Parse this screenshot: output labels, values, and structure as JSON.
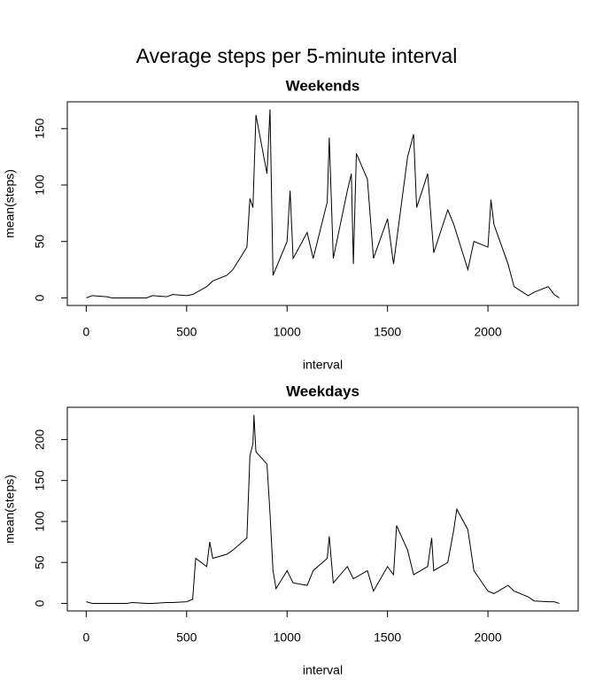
{
  "title": "Average steps per 5-minute interval",
  "chart_data": [
    {
      "type": "line",
      "title": "Weekends",
      "xlabel": "interval",
      "ylabel": "mean(steps)",
      "color": "#000000",
      "x": [
        0,
        30,
        100,
        130,
        200,
        230,
        300,
        330,
        400,
        430,
        500,
        530,
        600,
        630,
        700,
        730,
        800,
        815,
        830,
        845,
        900,
        915,
        930,
        1000,
        1015,
        1030,
        1100,
        1130,
        1200,
        1210,
        1230,
        1300,
        1320,
        1330,
        1345,
        1400,
        1430,
        1500,
        1530,
        1600,
        1630,
        1645,
        1700,
        1730,
        1800,
        1830,
        1900,
        1930,
        2000,
        2015,
        2030,
        2100,
        2130,
        2200,
        2230,
        2300,
        2330,
        2355
      ],
      "values": [
        0,
        2,
        1,
        0,
        0,
        0,
        0,
        2,
        1,
        3,
        2,
        3,
        10,
        15,
        20,
        25,
        45,
        88,
        80,
        162,
        110,
        167,
        20,
        50,
        95,
        35,
        58,
        35,
        85,
        142,
        35,
        95,
        110,
        30,
        128,
        105,
        35,
        70,
        30,
        125,
        145,
        80,
        110,
        40,
        78,
        65,
        25,
        50,
        45,
        87,
        65,
        30,
        10,
        2,
        5,
        10,
        3,
        0
      ],
      "xlim": [
        -94.2,
        2449.2
      ],
      "ylim": [
        -6.7,
        173.7
      ],
      "xticks": [
        0,
        500,
        1000,
        1500,
        2000
      ],
      "yticks": [
        0,
        50,
        100,
        150
      ]
    },
    {
      "type": "line",
      "title": "Weekdays",
      "xlabel": "interval",
      "ylabel": "mean(steps)",
      "color": "#000000",
      "x": [
        0,
        30,
        100,
        130,
        200,
        230,
        300,
        330,
        400,
        430,
        500,
        530,
        545,
        600,
        615,
        630,
        700,
        730,
        800,
        815,
        830,
        835,
        845,
        900,
        915,
        930,
        945,
        1000,
        1030,
        1100,
        1130,
        1200,
        1210,
        1230,
        1300,
        1330,
        1400,
        1430,
        1500,
        1530,
        1545,
        1600,
        1630,
        1700,
        1720,
        1730,
        1800,
        1830,
        1845,
        1900,
        1930,
        2000,
        2030,
        2100,
        2130,
        2200,
        2230,
        2300,
        2330,
        2355
      ],
      "values": [
        2,
        0,
        0,
        0,
        0,
        1,
        0,
        0,
        1,
        1,
        2,
        5,
        55,
        45,
        75,
        55,
        60,
        65,
        80,
        180,
        195,
        230,
        185,
        170,
        110,
        40,
        18,
        40,
        25,
        22,
        40,
        55,
        82,
        25,
        45,
        30,
        40,
        15,
        45,
        35,
        95,
        65,
        35,
        45,
        80,
        40,
        50,
        90,
        115,
        90,
        40,
        15,
        12,
        22,
        15,
        8,
        3,
        2,
        2,
        0
      ],
      "xlim": [
        -94.2,
        2449.2
      ],
      "ylim": [
        -9.2,
        239.4
      ],
      "xticks": [
        0,
        500,
        1000,
        1500,
        2000
      ],
      "yticks": [
        0,
        50,
        100,
        150,
        200
      ]
    }
  ]
}
